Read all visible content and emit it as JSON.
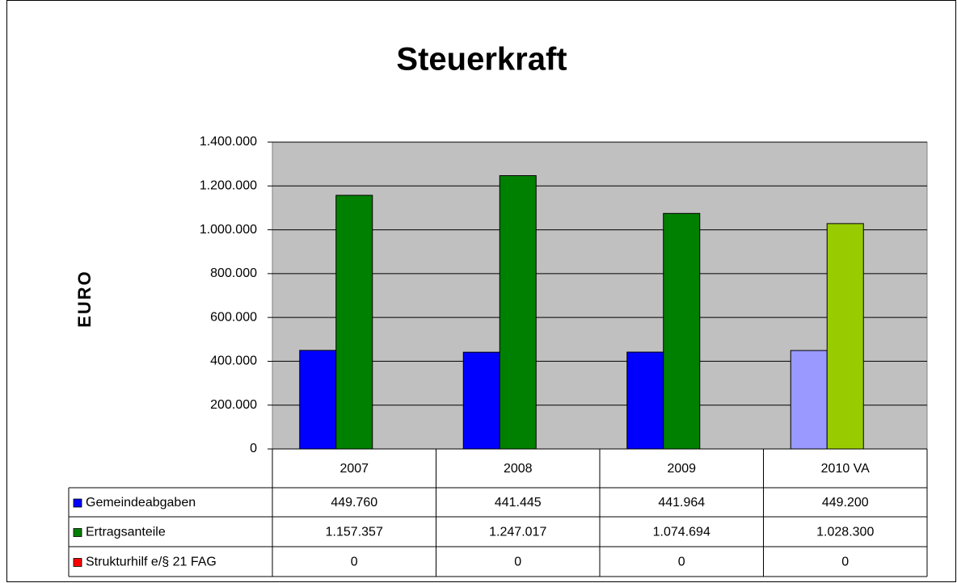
{
  "chart_data": {
    "type": "bar",
    "title": "Steuerkraft",
    "y_label": "EURO",
    "categories": [
      "2007",
      "2008",
      "2009",
      "2010 VA"
    ],
    "series": [
      {
        "name": "Gemeindeabgaben",
        "color": "#0000ff",
        "colors": [
          "#0000ff",
          "#0000ff",
          "#0000ff",
          "#9999ff"
        ],
        "values": [
          449760,
          441445,
          441964,
          449200
        ],
        "value_labels": [
          "449.760",
          "441.445",
          "441.964",
          "449.200"
        ]
      },
      {
        "name": "Ertragsanteile",
        "color": "#008000",
        "colors": [
          "#008000",
          "#008000",
          "#008000",
          "#99cc00"
        ],
        "values": [
          1157357,
          1247017,
          1074694,
          1028300
        ],
        "value_labels": [
          "1.157.357",
          "1.247.017",
          "1.074.694",
          "1.028.300"
        ]
      },
      {
        "name": "Strukturhilf e/§ 21 FAG",
        "color": "#ff0000",
        "colors": [
          "#ff0000",
          "#ff0000",
          "#ff0000",
          "#ff0000"
        ],
        "values": [
          0,
          0,
          0,
          0
        ]
      }
    ],
    "ylim": [
      0,
      1400000
    ],
    "yticks": [
      0,
      {
        "value": 200000,
        "label": "200.000"
      },
      {
        "value": 400000,
        "label": "400.000"
      },
      {
        "value": 600000,
        "label": "600.000"
      },
      {
        "value": 800000,
        "label": "800.000"
      },
      {
        "value": 1000000,
        "label": "1.000.000"
      },
      {
        "value": 1200000,
        "label": "1.200.000"
      },
      {
        "value": 1400000,
        "label": "1.400.000"
      }
    ],
    "grid": true,
    "plot_background": "#c0c0c0"
  }
}
